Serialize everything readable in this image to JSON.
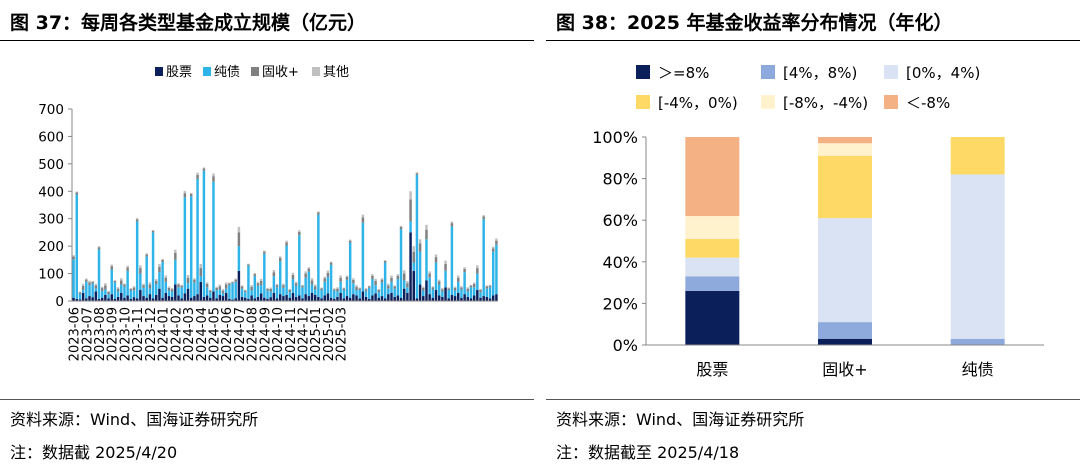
{
  "left": {
    "title": "图 37：每周各类型基金成立规模（亿元）",
    "source": "资料来源：Wind、国海证券研究所",
    "note": "注：数据截 2025/4/20"
  },
  "right": {
    "title": "图 38：2025 年基金收益率分布情况（年化）",
    "source": "资料来源：Wind、国海证券研究所",
    "note": "注：数据截至 2025/4/18"
  },
  "chart_data": [
    {
      "type": "bar",
      "stacked": true,
      "title": "",
      "xlabel": "",
      "ylabel": "",
      "ylim": [
        0,
        700
      ],
      "yticks": [
        0,
        100,
        200,
        300,
        400,
        500,
        600,
        700
      ],
      "grid": false,
      "legend_position": "top",
      "x_tick_labels": [
        "2023-06",
        "2023-07",
        "2023-08",
        "2023-09",
        "2023-10",
        "2023-11",
        "2023-12",
        "2024-01",
        "2024-02",
        "2024-03",
        "2024-04",
        "2024-05",
        "2024-06",
        "2024-07",
        "2024-08",
        "2024-09",
        "2024-10",
        "2024-11",
        "2024-12",
        "2025-01",
        "2025-02",
        "2025-03"
      ],
      "x_tick_every": 4,
      "series": [
        {
          "name": "股票",
          "color": "#0b1f5b",
          "values": [
            12,
            8,
            6,
            30,
            10,
            18,
            14,
            35,
            8,
            12,
            22,
            10,
            25,
            8,
            15,
            30,
            12,
            20,
            8,
            14,
            10,
            40,
            18,
            12,
            25,
            10,
            22,
            45,
            12,
            30,
            18,
            15,
            60,
            20,
            10,
            28,
            45,
            12,
            18,
            25,
            70,
            15,
            20,
            12,
            35,
            10,
            22,
            18,
            30,
            8,
            5,
            10,
            110,
            15,
            12,
            8,
            20,
            10,
            15,
            28,
            12,
            8,
            14,
            30,
            10,
            25,
            18,
            22,
            12,
            30,
            15,
            20,
            10,
            25,
            18,
            30,
            22,
            15,
            10,
            20,
            28,
            12,
            8,
            15,
            30,
            10,
            18,
            12,
            25,
            20,
            10,
            35,
            15,
            8,
            20,
            28,
            12,
            18,
            10,
            25,
            30,
            15,
            20,
            12,
            45,
            30,
            250,
            110,
            10,
            60,
            18,
            75,
            25,
            12,
            40,
            20,
            15,
            50,
            10,
            22,
            18,
            30,
            12,
            25,
            15,
            10,
            20,
            40,
            12,
            18,
            15,
            10,
            20,
            25
          ]
        },
        {
          "name": "纯债",
          "color": "#2fb4e9",
          "values": [
            140,
            380,
            20,
            10,
            60,
            40,
            50,
            10,
            180,
            25,
            20,
            15,
            90,
            60,
            20,
            30,
            40,
            90,
            30,
            25,
            280,
            60,
            30,
            150,
            20,
            240,
            40,
            60,
            130,
            40,
            20,
            20,
            90,
            30,
            40,
            350,
            20,
            370,
            50,
            420,
            20,
            460,
            30,
            20,
            400,
            30,
            20,
            10,
            15,
            50,
            60,
            60,
            90,
            30,
            20,
            120,
            20,
            80,
            40,
            30,
            160,
            30,
            20,
            60,
            40,
            120,
            30,
            180,
            20,
            50,
            40,
            220,
            40,
            60,
            90,
            30,
            20,
            300,
            30,
            50,
            60,
            120,
            30,
            20,
            40,
            30,
            60,
            200,
            40,
            20,
            30,
            250,
            20,
            40,
            60,
            30,
            20,
            50,
            130,
            20,
            40,
            30,
            60,
            250,
            30,
            20,
            40,
            30,
            450,
            120,
            20,
            150,
            60,
            30,
            100,
            40,
            20,
            60,
            30,
            250,
            20,
            40,
            30,
            80,
            20,
            40,
            30,
            60,
            20,
            280,
            30,
            40,
            160,
            180
          ]
        },
        {
          "name": "固收+",
          "color": "#808080",
          "values": [
            10,
            8,
            5,
            15,
            8,
            10,
            6,
            12,
            8,
            10,
            15,
            8,
            12,
            5,
            10,
            15,
            8,
            12,
            6,
            10,
            8,
            20,
            10,
            8,
            15,
            6,
            12,
            20,
            8,
            15,
            10,
            8,
            25,
            10,
            6,
            15,
            20,
            8,
            10,
            15,
            30,
            8,
            12,
            6,
            20,
            8,
            12,
            10,
            15,
            6,
            4,
            8,
            50,
            8,
            6,
            5,
            12,
            8,
            10,
            15,
            8,
            6,
            10,
            15,
            8,
            12,
            10,
            12,
            8,
            15,
            10,
            12,
            6,
            15,
            10,
            15,
            12,
            8,
            6,
            12,
            15,
            8,
            5,
            10,
            15,
            6,
            10,
            8,
            12,
            12,
            6,
            20,
            8,
            5,
            12,
            15,
            8,
            10,
            6,
            12,
            15,
            8,
            12,
            8,
            25,
            15,
            80,
            40,
            6,
            30,
            10,
            35,
            15,
            8,
            20,
            12,
            8,
            25,
            6,
            12,
            10,
            15,
            8,
            12,
            10,
            6,
            12,
            20,
            8,
            10,
            8,
            6,
            12,
            15
          ]
        },
        {
          "name": "其他",
          "color": "#c0c0c0",
          "values": [
            5,
            3,
            3,
            8,
            4,
            6,
            3,
            6,
            4,
            5,
            8,
            4,
            6,
            3,
            5,
            8,
            4,
            6,
            3,
            5,
            4,
            10,
            5,
            4,
            8,
            3,
            6,
            10,
            4,
            8,
            5,
            4,
            12,
            5,
            3,
            8,
            10,
            4,
            5,
            8,
            15,
            4,
            6,
            3,
            10,
            4,
            6,
            5,
            8,
            3,
            2,
            4,
            20,
            4,
            3,
            3,
            6,
            4,
            5,
            8,
            4,
            3,
            5,
            8,
            4,
            6,
            5,
            6,
            4,
            8,
            5,
            6,
            3,
            8,
            5,
            8,
            6,
            4,
            3,
            6,
            8,
            4,
            3,
            5,
            8,
            3,
            5,
            4,
            6,
            6,
            3,
            10,
            4,
            3,
            6,
            8,
            4,
            5,
            3,
            6,
            8,
            4,
            6,
            4,
            12,
            8,
            30,
            20,
            3,
            15,
            5,
            18,
            8,
            4,
            10,
            6,
            4,
            12,
            3,
            6,
            5,
            8,
            4,
            6,
            5,
            3,
            6,
            10,
            4,
            5,
            4,
            3,
            6,
            8
          ]
        }
      ]
    },
    {
      "type": "bar",
      "stacked": true,
      "percent": true,
      "title": "",
      "xlabel": "",
      "ylabel": "",
      "ylim": [
        0,
        100
      ],
      "yticks": [
        0,
        20,
        40,
        60,
        80,
        100
      ],
      "ytick_suffix": "%",
      "grid": false,
      "legend_position": "top",
      "categories": [
        "股票",
        "固收+",
        "纯债"
      ],
      "series": [
        {
          "name": "＞=8%",
          "color": "#0b1f5b",
          "values": [
            26,
            3,
            0
          ]
        },
        {
          "name": "[4%，8%)",
          "color": "#8ea9db",
          "values": [
            7,
            8,
            3
          ]
        },
        {
          "name": "[0%，4%)",
          "color": "#dae3f3",
          "values": [
            9,
            50,
            79
          ]
        },
        {
          "name": "[-4%，0%)",
          "color": "#ffd966",
          "values": [
            9,
            30,
            18
          ]
        },
        {
          "name": "[-8%，-4%)",
          "color": "#fff2cc",
          "values": [
            11,
            6,
            0
          ]
        },
        {
          "name": "＜-8%",
          "color": "#f4b183",
          "values": [
            38,
            3,
            0
          ]
        }
      ]
    }
  ]
}
